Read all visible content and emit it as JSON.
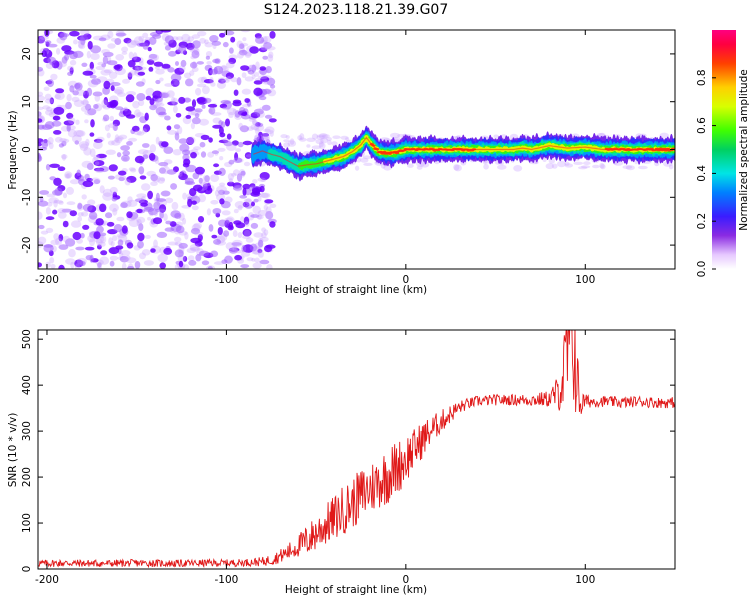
{
  "title": "S124.2023.118.21.39.G07",
  "colors": {
    "scatter": "#7a1cf0",
    "ridge_core": "#ff2020",
    "snr_line": "#e01818",
    "axis": "#000000"
  },
  "chart_data": [
    {
      "type": "heatmap",
      "xlabel": "Height of straight line (km)",
      "ylabel": "Frequency (Hz)",
      "xlim": [
        -205,
        150
      ],
      "ylim": [
        -25,
        25
      ],
      "x_ticks": [
        -200,
        -100,
        0,
        100
      ],
      "y_ticks": [
        -20,
        -10,
        0,
        10,
        20
      ],
      "colorbar": {
        "label": "Normalized spectral amplitude",
        "range": [
          0.0,
          1.0
        ],
        "ticks": [
          "0.0",
          "0.2",
          "0.4",
          "0.6",
          "0.8"
        ],
        "colormap": "rainbow (violet-blue-cyan-green-yellow-red-magenta)"
      },
      "noise_region": {
        "x_range": [
          -205,
          -82
        ],
        "freq_range": [
          -25,
          25
        ],
        "amplitude": "low (0.0-0.2)"
      },
      "ridge": {
        "x": [
          -85,
          -80,
          -75,
          -70,
          -65,
          -60,
          -55,
          -50,
          -45,
          -40,
          -35,
          -30,
          -25,
          -22,
          -20,
          -15,
          -10,
          -5,
          0,
          10,
          20,
          30,
          40,
          50,
          60,
          65,
          70,
          80,
          90,
          100,
          110,
          120,
          130,
          140,
          150
        ],
        "freq": [
          -1.0,
          -0.3,
          -1.0,
          -1.5,
          -2.5,
          -3.5,
          -3.2,
          -3.0,
          -2.5,
          -2.0,
          -1.5,
          -0.5,
          1.0,
          2.5,
          1.5,
          -0.5,
          -0.8,
          -0.6,
          0.0,
          0.0,
          0.0,
          0.0,
          0.0,
          0.0,
          0.0,
          0.3,
          0.0,
          0.8,
          0.3,
          0.5,
          0.0,
          0.0,
          0.0,
          0.0,
          0.0
        ],
        "amplitude": [
          0.3,
          0.35,
          0.4,
          0.4,
          0.45,
          0.5,
          0.55,
          0.6,
          0.65,
          0.7,
          0.7,
          0.75,
          0.8,
          0.8,
          0.8,
          0.85,
          0.85,
          0.9,
          0.9,
          0.9,
          0.9,
          0.85,
          0.8,
          0.8,
          0.8,
          0.8,
          0.8,
          0.8,
          0.8,
          0.8,
          0.8,
          0.85,
          0.85,
          0.85,
          0.85
        ]
      }
    },
    {
      "type": "line",
      "xlabel": "Height of straight line (km)",
      "ylabel": "SNR (10 * v/v)",
      "xlim": [
        -205,
        150
      ],
      "ylim": [
        0,
        520
      ],
      "x_ticks": [
        -200,
        -100,
        0,
        100
      ],
      "y_ticks": [
        0,
        100,
        200,
        300,
        400,
        500
      ],
      "series": [
        {
          "x": [
            -205,
            -190,
            -170,
            -150,
            -130,
            -110,
            -100,
            -90,
            -80,
            -75,
            -70,
            -65,
            -60,
            -55,
            -50,
            -45,
            -40,
            -35,
            -30,
            -25,
            -20,
            -15,
            -10,
            -5,
            0,
            5,
            10,
            15,
            20,
            25,
            30,
            35,
            40,
            50,
            60,
            70,
            80,
            85,
            88,
            90,
            92,
            94,
            96,
            98,
            100,
            110,
            120,
            130,
            140,
            150
          ],
          "values": [
            12,
            13,
            12,
            13,
            12,
            13,
            13,
            14,
            16,
            20,
            28,
            38,
            50,
            62,
            78,
            95,
            110,
            128,
            142,
            160,
            175,
            190,
            205,
            220,
            240,
            262,
            285,
            305,
            322,
            338,
            352,
            360,
            365,
            368,
            368,
            368,
            370,
            385,
            420,
            460,
            520,
            480,
            380,
            360,
            365,
            365,
            362,
            365,
            362,
            362
          ],
          "noise_amplitude": [
            8,
            8,
            8,
            8,
            8,
            8,
            8,
            8,
            10,
            12,
            15,
            20,
            25,
            35,
            40,
            45,
            50,
            55,
            55,
            60,
            60,
            60,
            65,
            60,
            55,
            45,
            40,
            30,
            25,
            20,
            15,
            12,
            12,
            12,
            12,
            14,
            18,
            40,
            90,
            140,
            170,
            140,
            80,
            30,
            15,
            12,
            12,
            12,
            12,
            12
          ]
        }
      ]
    }
  ]
}
